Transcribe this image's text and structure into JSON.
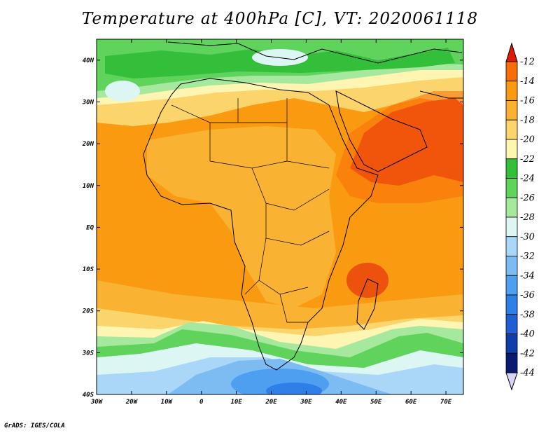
{
  "title": "Temperature at 400hPa [C], VT: 2020061118",
  "footer": "GrADS: IGES/COLA",
  "map": {
    "lon_range": [
      -30,
      75
    ],
    "lat_range": [
      -40,
      45
    ],
    "x_ticks": [
      {
        "lon": -30,
        "label": "30W"
      },
      {
        "lon": -20,
        "label": "20W"
      },
      {
        "lon": -10,
        "label": "10W"
      },
      {
        "lon": 0,
        "label": "0"
      },
      {
        "lon": 10,
        "label": "10E"
      },
      {
        "lon": 20,
        "label": "20E"
      },
      {
        "lon": 30,
        "label": "30E"
      },
      {
        "lon": 40,
        "label": "40E"
      },
      {
        "lon": 50,
        "label": "50E"
      },
      {
        "lon": 60,
        "label": "60E"
      },
      {
        "lon": 70,
        "label": "70E"
      }
    ],
    "y_ticks": [
      {
        "lat": 40,
        "label": "40N"
      },
      {
        "lat": 30,
        "label": "30N"
      },
      {
        "lat": 20,
        "label": "20N"
      },
      {
        "lat": 10,
        "label": "10N"
      },
      {
        "lat": 0,
        "label": "EQ"
      },
      {
        "lat": -10,
        "label": "10S"
      },
      {
        "lat": -20,
        "label": "20S"
      },
      {
        "lat": -30,
        "label": "30S"
      },
      {
        "lat": -40,
        "label": "40S"
      }
    ]
  },
  "colorbar": {
    "levels": [
      "-12",
      "-14",
      "-16",
      "-18",
      "-20",
      "-22",
      "-24",
      "-26",
      "-28",
      "-30",
      "-32",
      "-34",
      "-36",
      "-38",
      "-40",
      "-42",
      "-44"
    ],
    "colors": [
      "#e8380e",
      "#f76d0a",
      "#fa9a10",
      "#f9b232",
      "#fbd46b",
      "#fef5b2",
      "#34bf3a",
      "#5fd35c",
      "#a6e89d",
      "#dcf7f3",
      "#aad7f8",
      "#7cbcf2",
      "#4e9ff0",
      "#2f7fe8",
      "#1f5fd3",
      "#103ea8",
      "#0a1a70"
    ],
    "top_arrow_color": "#e01808",
    "bottom_arrow_color": "#d6d4f4"
  }
}
